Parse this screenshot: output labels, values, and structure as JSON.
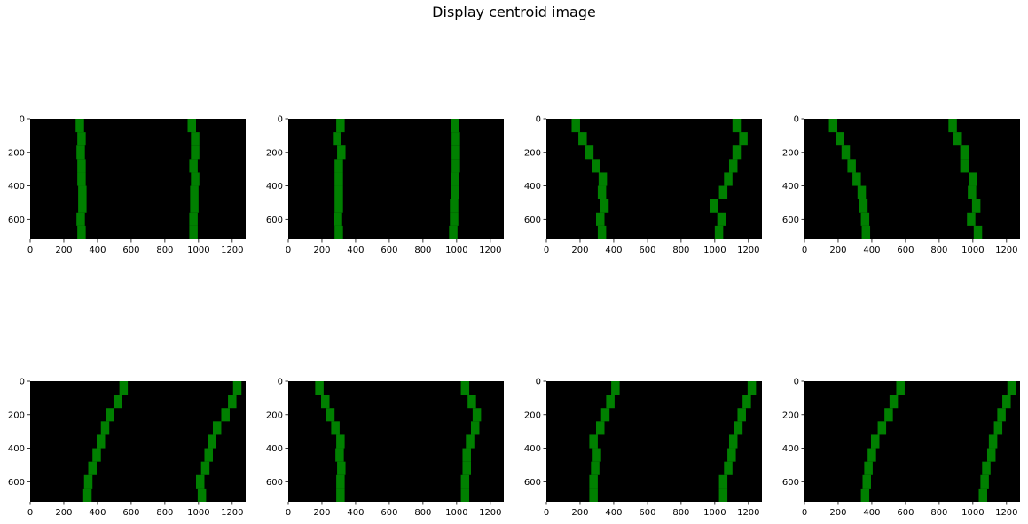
{
  "suptitle": "Display centroid image",
  "colors": {
    "background": "#000000",
    "window": "#008000",
    "figure": "#ffffff"
  },
  "chart_data": {
    "type": "heatmap",
    "title": "Display centroid image",
    "xlim": [
      0,
      1280
    ],
    "ylim": [
      720,
      0
    ],
    "xticks": [
      0,
      200,
      400,
      600,
      800,
      1000,
      1200
    ],
    "yticks": [
      0,
      200,
      400,
      600
    ],
    "window_width": 50,
    "window_height": 80,
    "window_rows_y": [
      40,
      120,
      200,
      280,
      360,
      440,
      520,
      600,
      680
    ],
    "panels": [
      {
        "left": [
          295,
          305,
          300,
          305,
          305,
          310,
          310,
          300,
          305
        ],
        "right": [
          960,
          980,
          980,
          970,
          980,
          975,
          975,
          970,
          970
        ]
      },
      {
        "left": [
          310,
          290,
          315,
          300,
          300,
          300,
          300,
          295,
          300
        ],
        "right": [
          990,
          995,
          995,
          995,
          990,
          990,
          985,
          985,
          980
        ]
      },
      {
        "left": [
          175,
          215,
          255,
          295,
          335,
          330,
          345,
          320,
          330
        ],
        "right": [
          1130,
          1170,
          1130,
          1110,
          1080,
          1050,
          995,
          1040,
          1025
        ]
      },
      {
        "left": [
          170,
          210,
          245,
          280,
          310,
          340,
          350,
          360,
          365
        ],
        "right": [
          880,
          910,
          950,
          950,
          1000,
          995,
          1020,
          990,
          1030
        ]
      },
      {
        "left": [
          555,
          520,
          475,
          445,
          420,
          395,
          370,
          345,
          340
        ],
        "right": [
          1230,
          1200,
          1160,
          1110,
          1080,
          1060,
          1040,
          1010,
          1020
        ]
      },
      {
        "left": [
          185,
          220,
          250,
          280,
          310,
          305,
          315,
          310,
          310
        ],
        "right": [
          1050,
          1090,
          1120,
          1110,
          1080,
          1060,
          1060,
          1050,
          1050
        ]
      },
      {
        "left": [
          410,
          380,
          350,
          320,
          280,
          300,
          290,
          280,
          280
        ],
        "right": [
          1220,
          1190,
          1160,
          1140,
          1110,
          1100,
          1080,
          1050,
          1050
        ]
      },
      {
        "left": [
          570,
          530,
          500,
          460,
          420,
          400,
          380,
          370,
          360
        ],
        "right": [
          1230,
          1200,
          1170,
          1150,
          1120,
          1110,
          1080,
          1070,
          1060
        ]
      }
    ]
  }
}
